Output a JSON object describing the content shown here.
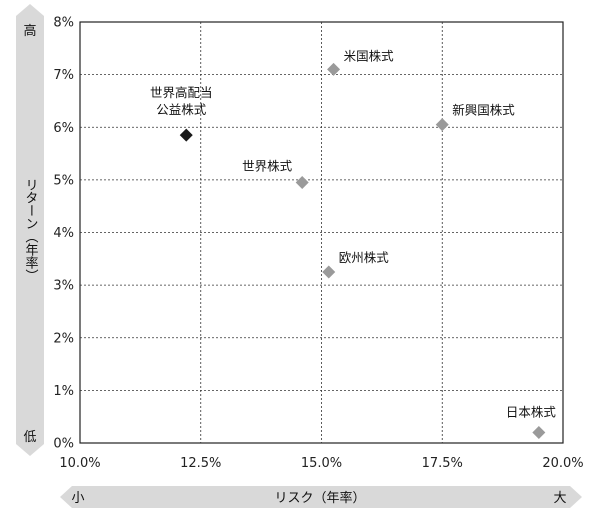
{
  "chart_data": {
    "type": "scatter",
    "title": "",
    "xlabel": "リスク（年率）",
    "ylabel": "リターン（年率）",
    "xlim": [
      10.0,
      20.0
    ],
    "ylim": [
      0,
      8
    ],
    "x_ticks": [
      "10.0%",
      "12.5%",
      "15.0%",
      "17.5%",
      "20.0%"
    ],
    "y_ticks": [
      "0%",
      "1%",
      "2%",
      "3%",
      "4%",
      "5%",
      "6%",
      "7%",
      "8%"
    ],
    "grid": true,
    "y_arrow": {
      "top": "高",
      "bottom": "低"
    },
    "x_arrow": {
      "left": "小",
      "right": "大"
    },
    "points": [
      {
        "label": "世界高配当\n公益株式",
        "x": 12.2,
        "y": 5.85,
        "color": "#1a1a1a"
      },
      {
        "label": "米国株式",
        "x": 15.25,
        "y": 7.1,
        "color": "#9a9a9a"
      },
      {
        "label": "新興国株式",
        "x": 17.5,
        "y": 6.05,
        "color": "#9a9a9a"
      },
      {
        "label": "世界株式",
        "x": 14.6,
        "y": 4.95,
        "color": "#9a9a9a"
      },
      {
        "label": "欧州株式",
        "x": 15.15,
        "y": 3.25,
        "color": "#9a9a9a"
      },
      {
        "label": "日本株式",
        "x": 19.5,
        "y": 0.2,
        "color": "#9a9a9a"
      }
    ]
  }
}
